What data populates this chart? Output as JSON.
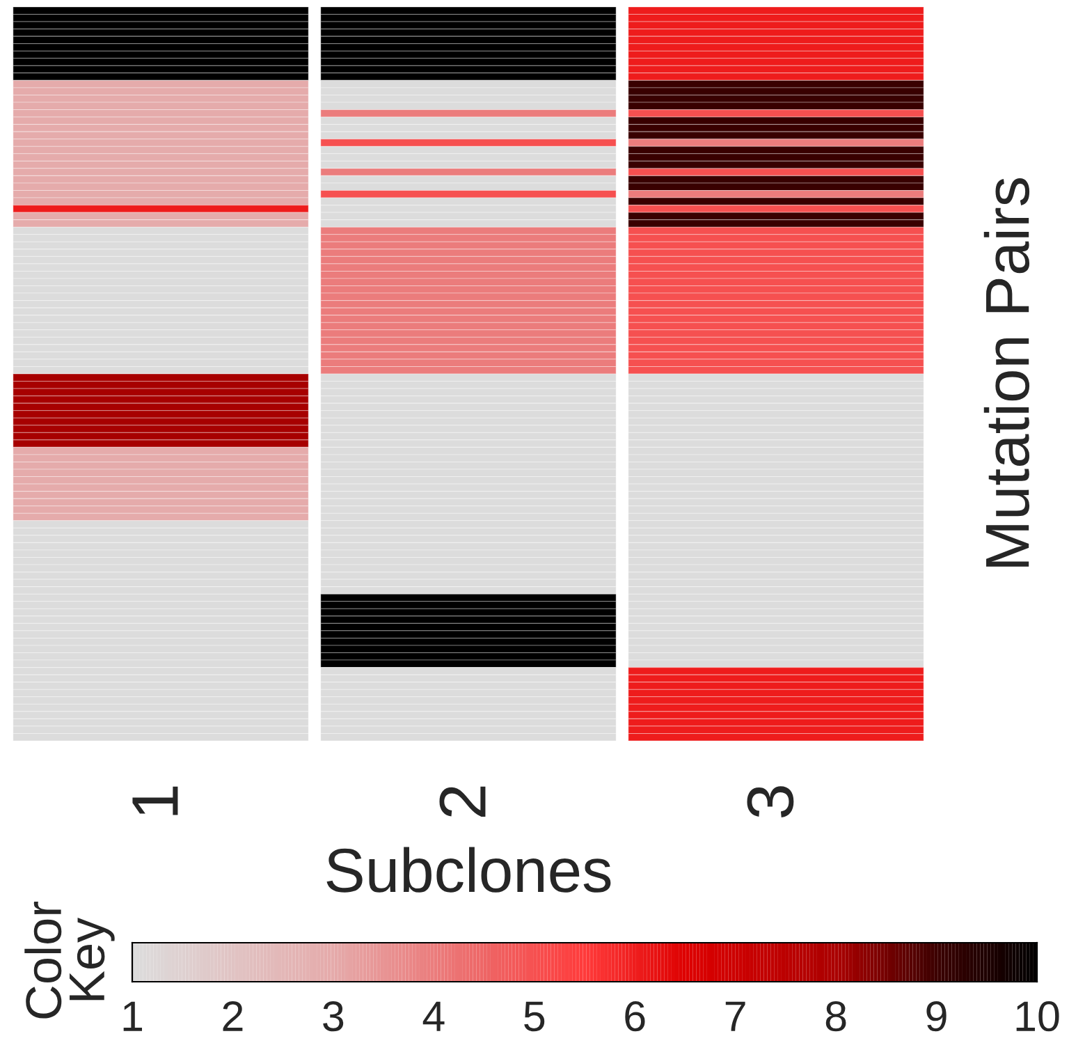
{
  "chart_data": {
    "type": "heatmap",
    "xlabel": "Subclones",
    "ylabel": "Mutation Pairs",
    "clabel": "Color\nKey",
    "categories": [
      "1",
      "2",
      "3"
    ],
    "y_categories": [
      null,
      null,
      null,
      null,
      null,
      null,
      null,
      null,
      null,
      null,
      null,
      null,
      null,
      null,
      null,
      null,
      null,
      null,
      null,
      null,
      null,
      null,
      null,
      null,
      null,
      null,
      null,
      null,
      null,
      null,
      null,
      null,
      null,
      null,
      null,
      null,
      null,
      null,
      null,
      null,
      null,
      null,
      null,
      null,
      null,
      null,
      null,
      null,
      null,
      null,
      null,
      null,
      null,
      null,
      null,
      null,
      null,
      null,
      null,
      null,
      null,
      null,
      null,
      null,
      null,
      null,
      null,
      null,
      null,
      null,
      null,
      null,
      null,
      null,
      null,
      null,
      null,
      null,
      null,
      null,
      null,
      null,
      null,
      null,
      null,
      null,
      null,
      null,
      null,
      null,
      null,
      null,
      null,
      null,
      null,
      null,
      null,
      null,
      null,
      null
    ],
    "cells": [
      [
        10,
        10,
        6
      ],
      [
        10,
        10,
        6
      ],
      [
        10,
        10,
        6
      ],
      [
        10,
        10,
        6
      ],
      [
        10,
        10,
        6
      ],
      [
        10,
        10,
        6
      ],
      [
        10,
        10,
        6
      ],
      [
        10,
        10,
        6
      ],
      [
        10,
        10,
        6
      ],
      [
        10,
        10,
        6
      ],
      [
        3,
        1,
        9
      ],
      [
        3,
        1,
        9
      ],
      [
        3,
        1,
        9
      ],
      [
        3,
        1,
        9
      ],
      [
        3,
        4,
        5
      ],
      [
        3,
        1,
        9
      ],
      [
        3,
        1,
        9
      ],
      [
        3,
        1,
        9
      ],
      [
        3,
        5,
        4
      ],
      [
        3,
        1,
        9
      ],
      [
        3,
        1,
        9
      ],
      [
        3,
        1,
        9
      ],
      [
        3,
        4,
        5
      ],
      [
        3,
        1,
        9
      ],
      [
        3,
        1,
        9
      ],
      [
        3,
        5,
        4
      ],
      [
        3,
        1,
        9
      ],
      [
        6,
        1,
        5
      ],
      [
        3,
        1,
        9
      ],
      [
        3,
        1,
        9
      ],
      [
        1,
        4,
        5
      ],
      [
        1,
        4,
        5
      ],
      [
        1,
        4,
        5
      ],
      [
        1,
        4,
        5
      ],
      [
        1,
        4,
        5
      ],
      [
        1,
        4,
        5
      ],
      [
        1,
        4,
        5
      ],
      [
        1,
        4,
        5
      ],
      [
        1,
        4,
        5
      ],
      [
        1,
        4,
        5
      ],
      [
        1,
        4,
        5
      ],
      [
        1,
        4,
        5
      ],
      [
        1,
        4,
        5
      ],
      [
        1,
        4,
        5
      ],
      [
        1,
        4,
        5
      ],
      [
        1,
        4,
        5
      ],
      [
        1,
        4,
        5
      ],
      [
        1,
        4,
        5
      ],
      [
        1,
        4,
        5
      ],
      [
        1,
        4,
        5
      ],
      [
        8,
        1,
        1
      ],
      [
        8,
        1,
        1
      ],
      [
        8,
        1,
        1
      ],
      [
        8,
        1,
        1
      ],
      [
        8,
        1,
        1
      ],
      [
        8,
        1,
        1
      ],
      [
        8,
        1,
        1
      ],
      [
        8,
        1,
        1
      ],
      [
        8,
        1,
        1
      ],
      [
        8,
        1,
        1
      ],
      [
        3,
        1,
        1
      ],
      [
        3,
        1,
        1
      ],
      [
        3,
        1,
        1
      ],
      [
        3,
        1,
        1
      ],
      [
        3,
        1,
        1
      ],
      [
        3,
        1,
        1
      ],
      [
        3,
        1,
        1
      ],
      [
        3,
        1,
        1
      ],
      [
        3,
        1,
        1
      ],
      [
        3,
        1,
        1
      ],
      [
        1,
        1,
        1
      ],
      [
        1,
        1,
        1
      ],
      [
        1,
        1,
        1
      ],
      [
        1,
        1,
        1
      ],
      [
        1,
        1,
        1
      ],
      [
        1,
        1,
        1
      ],
      [
        1,
        1,
        1
      ],
      [
        1,
        1,
        1
      ],
      [
        1,
        1,
        1
      ],
      [
        1,
        1,
        1
      ],
      [
        1,
        10,
        1
      ],
      [
        1,
        10,
        1
      ],
      [
        1,
        10,
        1
      ],
      [
        1,
        10,
        1
      ],
      [
        1,
        10,
        1
      ],
      [
        1,
        10,
        1
      ],
      [
        1,
        10,
        1
      ],
      [
        1,
        10,
        1
      ],
      [
        1,
        10,
        1
      ],
      [
        1,
        10,
        1
      ],
      [
        1,
        1,
        6
      ],
      [
        1,
        1,
        6
      ],
      [
        1,
        1,
        6
      ],
      [
        1,
        1,
        6
      ],
      [
        1,
        1,
        6
      ],
      [
        1,
        1,
        6
      ],
      [
        1,
        1,
        6
      ],
      [
        1,
        1,
        6
      ],
      [
        1,
        1,
        6
      ],
      [
        1,
        1,
        6
      ]
    ],
    "clim": [
      1,
      10
    ],
    "cticks": [
      1,
      2,
      3,
      4,
      5,
      6,
      7,
      8,
      9,
      10
    ]
  }
}
